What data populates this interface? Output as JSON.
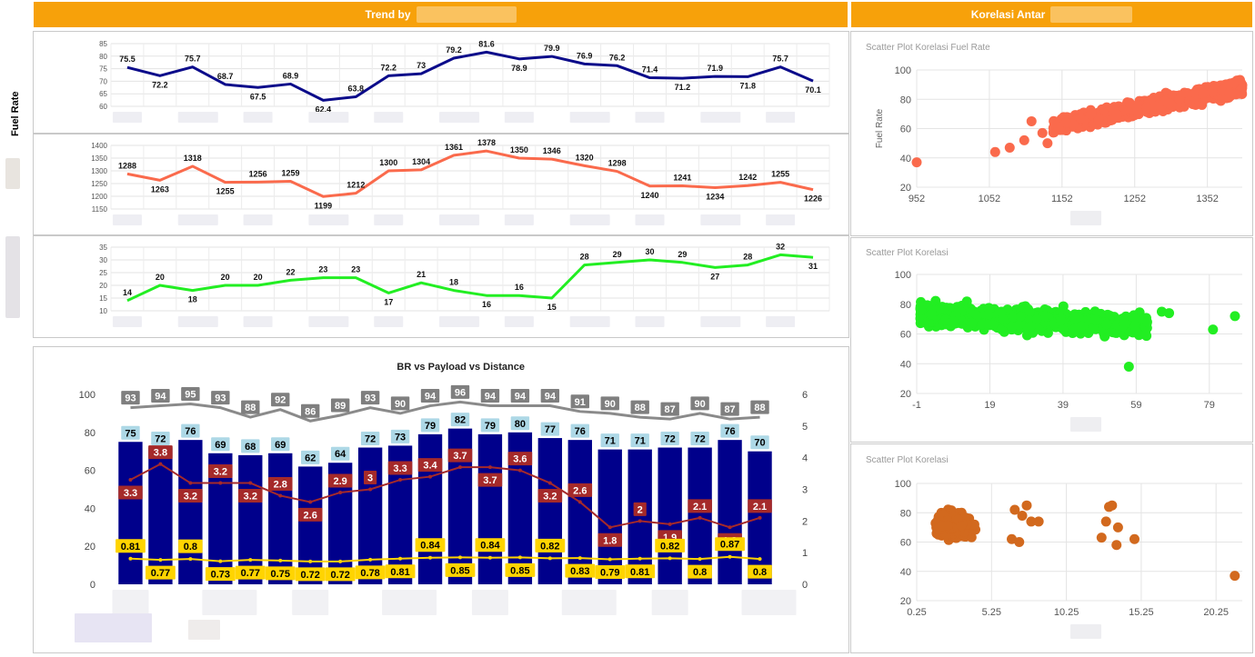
{
  "header": {
    "trend_title": "Trend by",
    "corr_title": "Korelasi Antar",
    "accent_color": "#f7a10a"
  },
  "sidebar": {
    "fuel_rate_label": "Fuel Rate"
  },
  "trend_charts": [
    {
      "id": "fuel-rate",
      "color": "#0b0b8a",
      "yticks": [
        60,
        65,
        70,
        75,
        80,
        85
      ],
      "ylim": [
        60,
        85
      ],
      "values": [
        75.5,
        72.2,
        75.7,
        68.7,
        67.5,
        68.9,
        62.4,
        63.8,
        72.2,
        73,
        79.2,
        81.6,
        78.9,
        79.9,
        76.9,
        76.2,
        71.4,
        71.2,
        71.9,
        71.8,
        75.7,
        70.1
      ]
    },
    {
      "id": "distance",
      "color": "#fa6a4c",
      "yticks": [
        1150,
        1200,
        1250,
        1300,
        1350,
        1400
      ],
      "ylim": [
        1150,
        1400
      ],
      "values": [
        1288,
        1263,
        1318,
        1255,
        1256,
        1259,
        1199,
        1212,
        1300,
        1304,
        1361,
        1378,
        1350,
        1346,
        1320,
        1298,
        1240,
        1241,
        1234,
        1242,
        1255,
        1226
      ]
    },
    {
      "id": "payload",
      "color": "#22ee22",
      "yticks": [
        10,
        15,
        20,
        25,
        30,
        35
      ],
      "ylim": [
        10,
        35
      ],
      "values": [
        14,
        20,
        18,
        20,
        20,
        22,
        23,
        23,
        17,
        21,
        18,
        16,
        16,
        15,
        28,
        29,
        30,
        29,
        27,
        28,
        32,
        31
      ]
    }
  ],
  "combo": {
    "title": "BR vs Payload vs Distance",
    "yleft_ticks": [
      0,
      20,
      40,
      60,
      80,
      100
    ],
    "yright_ticks": [
      0,
      1,
      2,
      3,
      4,
      5,
      6
    ],
    "bar_color": "#00008b",
    "bars": [
      75,
      72,
      76,
      69,
      68,
      69,
      62,
      64,
      72,
      73,
      79,
      82,
      79,
      80,
      77,
      76,
      71,
      71,
      72,
      72,
      76,
      70
    ],
    "gray_line": [
      93,
      94,
      95,
      93,
      88,
      92,
      86,
      89,
      93,
      90,
      94,
      96,
      94,
      94,
      94,
      91,
      90,
      88,
      87,
      90,
      87,
      88
    ],
    "red_line": [
      3.3,
      3.8,
      3.2,
      3.2,
      3.2,
      2.8,
      2.6,
      2.9,
      3,
      3.3,
      3.4,
      3.7,
      3.7,
      3.6,
      3.2,
      2.6,
      1.8,
      2,
      1.9,
      2.1,
      1.8,
      2.1
    ],
    "yellow_line": [
      0.81,
      0.77,
      0.8,
      0.73,
      0.77,
      0.75,
      0.72,
      0.72,
      0.78,
      0.81,
      0.84,
      0.85,
      0.84,
      0.85,
      0.82,
      0.83,
      0.79,
      0.81,
      0.82,
      0.8,
      0.87,
      0.8
    ]
  },
  "scatters": [
    {
      "title": "Scatter Plot Korelasi Fuel Rate",
      "ylabel": "Fuel Rate",
      "color": "#fa6a4c",
      "xticks": [
        952,
        1052,
        1152,
        1252,
        1352
      ],
      "xlim": [
        952,
        1400
      ],
      "yticks": [
        20,
        40,
        60,
        80,
        100
      ],
      "ylim": [
        20,
        100
      ]
    },
    {
      "title": "Scatter Plot Korelasi",
      "ylabel": "",
      "color": "#22ee22",
      "xticks": [
        -1,
        19,
        39,
        59,
        79
      ],
      "xlim": [
        -1,
        88
      ],
      "yticks": [
        20,
        40,
        60,
        80,
        100
      ],
      "ylim": [
        20,
        100
      ]
    },
    {
      "title": "Scatter Plot Korelasi",
      "ylabel": "",
      "color": "#d2691e",
      "xticks": [
        0.25,
        5.25,
        10.25,
        15.25,
        20.25
      ],
      "xlim": [
        0.25,
        22
      ],
      "yticks": [
        20,
        40,
        60,
        80,
        100
      ],
      "ylim": [
        20,
        100
      ]
    }
  ]
}
